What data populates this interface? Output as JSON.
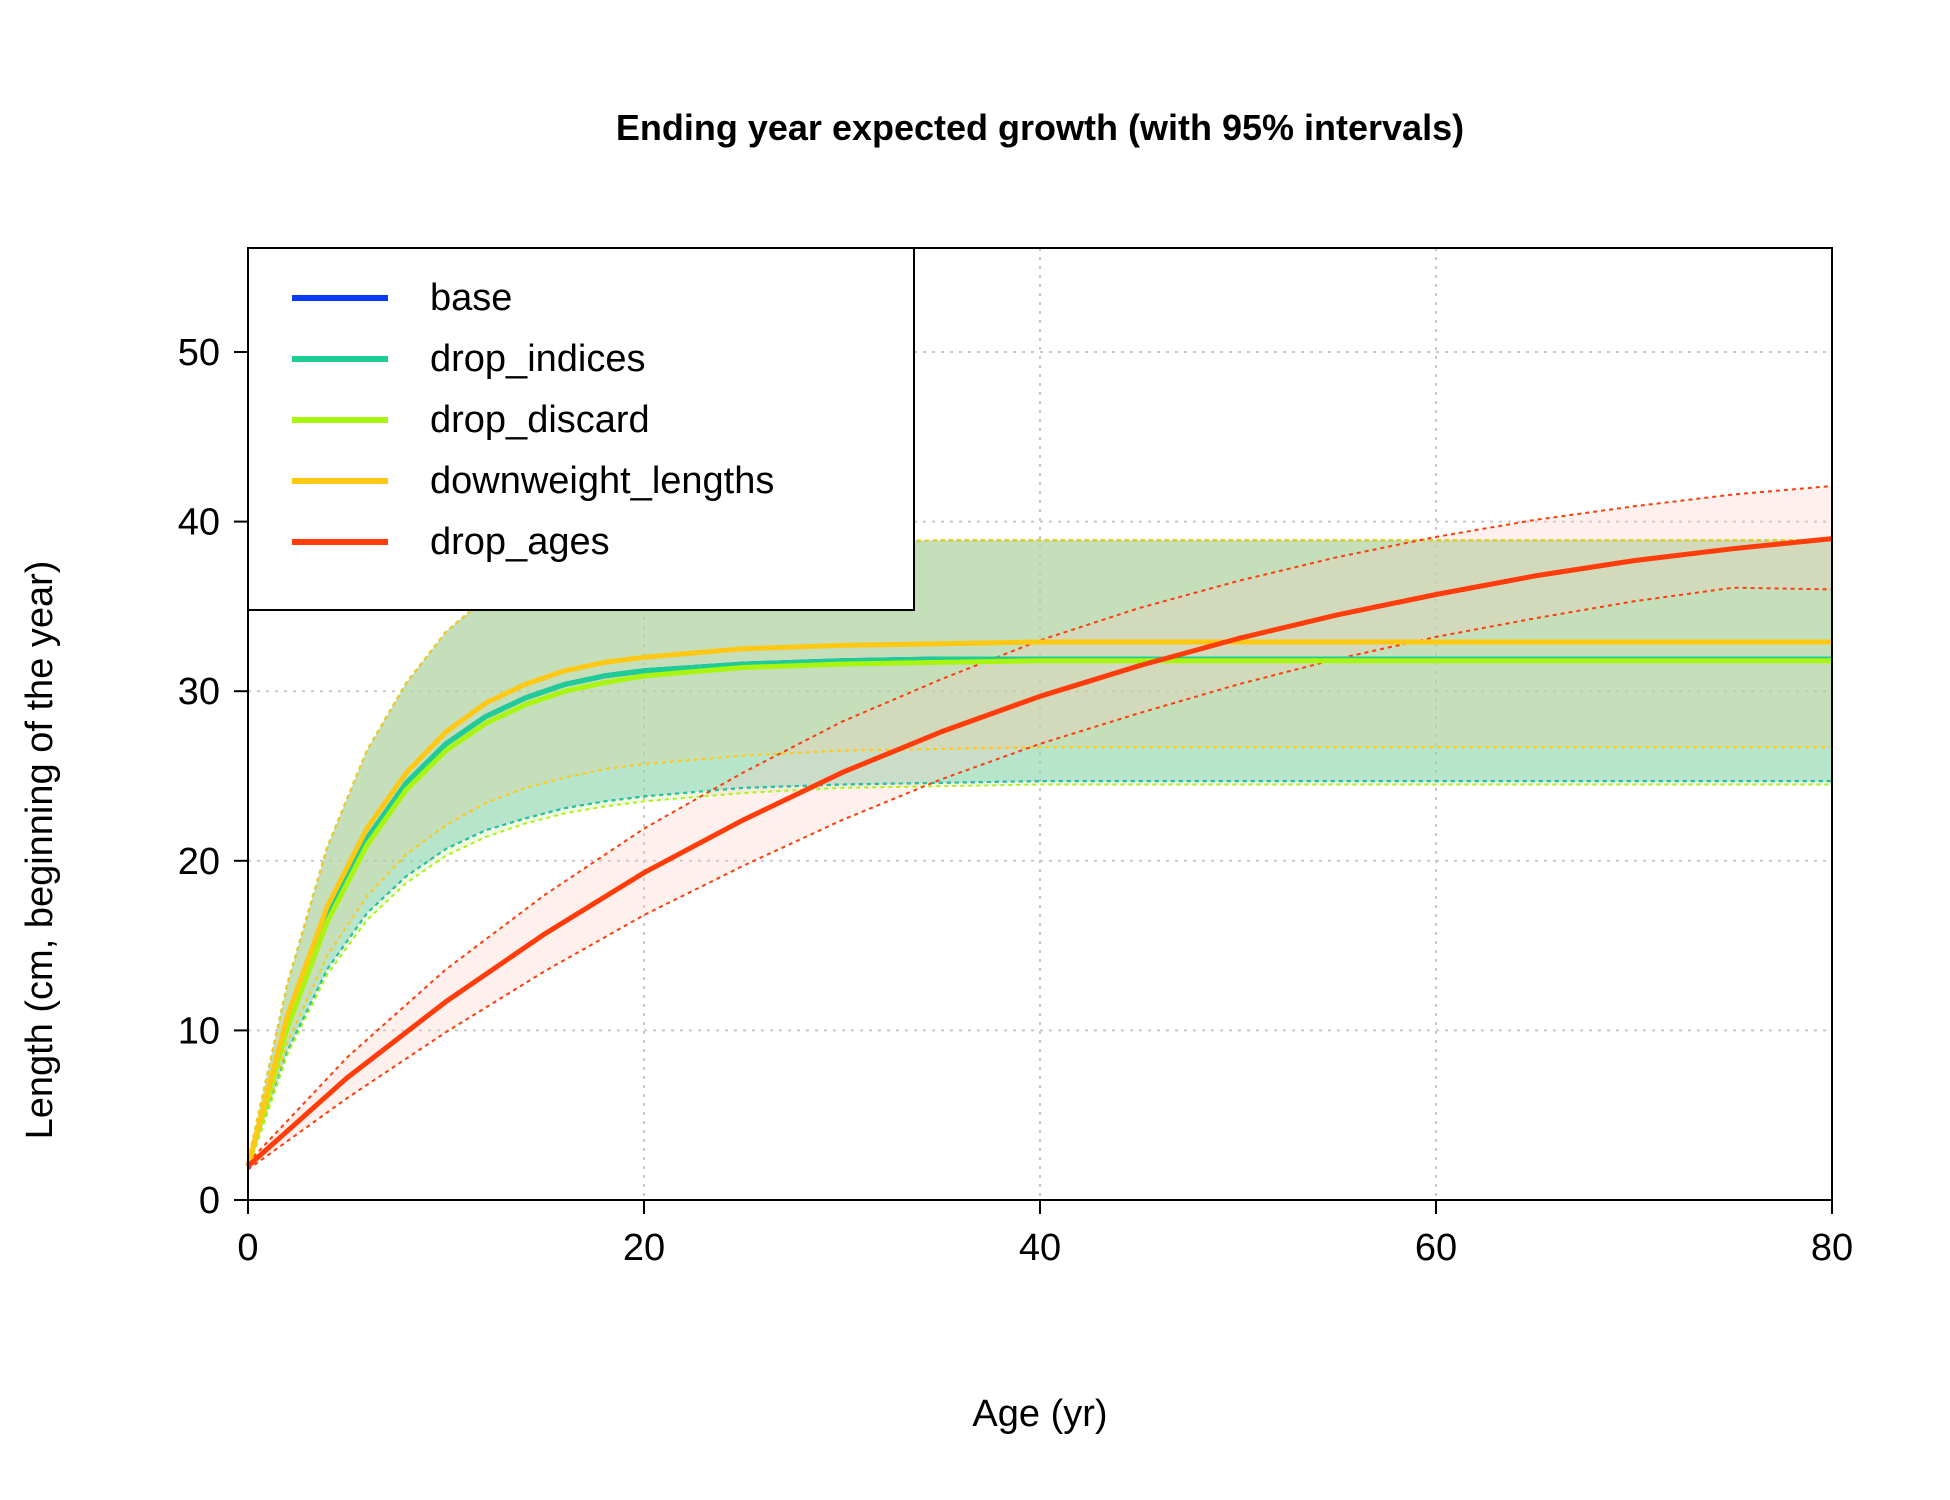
{
  "chart_data": {
    "type": "line",
    "title": "Ending year expected growth (with 95% intervals)",
    "xlabel": "Age (yr)",
    "ylabel": "Length (cm, beginning of the year)",
    "xlim": [
      0,
      80
    ],
    "ylim": [
      0,
      55
    ],
    "xticks": [
      0,
      20,
      40,
      60,
      80
    ],
    "yticks": [
      0,
      10,
      20,
      30,
      40,
      50
    ],
    "grid": true,
    "legend_position": "top-left",
    "series": [
      {
        "name": "base",
        "color": "#0a3cf5",
        "fill": "#5fc8c8",
        "x": [
          0,
          2,
          4,
          6,
          8,
          10,
          12,
          14,
          16,
          18,
          20,
          25,
          30,
          35,
          40,
          50,
          60,
          70,
          80
        ],
        "y": [
          2,
          10.5,
          16.8,
          21.3,
          24.6,
          26.9,
          28.5,
          29.6,
          30.4,
          30.9,
          31.2,
          31.6,
          31.8,
          31.9,
          31.9,
          31.9,
          31.9,
          31.9,
          31.9
        ],
        "lower": [
          1.8,
          8.8,
          13.6,
          16.9,
          19.1,
          20.7,
          21.8,
          22.5,
          23.1,
          23.5,
          23.8,
          24.3,
          24.5,
          24.6,
          24.7,
          24.7,
          24.7,
          24.7,
          24.7
        ],
        "upper": [
          2.3,
          12.8,
          20.8,
          26.5,
          30.5,
          33.5,
          35.5,
          36.8,
          37.6,
          38.1,
          38.4,
          38.7,
          38.8,
          38.9,
          38.9,
          38.9,
          38.9,
          38.9,
          38.9
        ]
      },
      {
        "name": "drop_indices",
        "color": "#1ecd96",
        "fill": "#5fc8c8",
        "x": [
          0,
          2,
          4,
          6,
          8,
          10,
          12,
          14,
          16,
          18,
          20,
          25,
          30,
          35,
          40,
          50,
          60,
          70,
          80
        ],
        "y": [
          2,
          10.5,
          16.8,
          21.3,
          24.6,
          26.9,
          28.5,
          29.6,
          30.4,
          30.9,
          31.2,
          31.6,
          31.8,
          31.9,
          31.9,
          31.9,
          31.9,
          31.9,
          31.9
        ],
        "lower": [
          1.8,
          8.8,
          13.6,
          16.9,
          19.1,
          20.7,
          21.8,
          22.5,
          23.1,
          23.5,
          23.8,
          24.3,
          24.5,
          24.6,
          24.7,
          24.7,
          24.7,
          24.7,
          24.7
        ],
        "upper": [
          2.3,
          12.8,
          20.8,
          26.5,
          30.5,
          33.5,
          35.5,
          36.8,
          37.6,
          38.1,
          38.4,
          38.7,
          38.8,
          38.9,
          38.9,
          38.9,
          38.9,
          38.9,
          38.9
        ]
      },
      {
        "name": "drop_discard",
        "color": "#aaf50f",
        "fill": "#c8e68c",
        "x": [
          0,
          2,
          4,
          6,
          8,
          10,
          12,
          14,
          16,
          18,
          20,
          25,
          30,
          35,
          40,
          50,
          60,
          70,
          80
        ],
        "y": [
          2,
          10.2,
          16.4,
          20.9,
          24.2,
          26.5,
          28.1,
          29.2,
          30.0,
          30.5,
          30.9,
          31.4,
          31.6,
          31.7,
          31.8,
          31.8,
          31.8,
          31.8,
          31.8
        ],
        "lower": [
          1.8,
          8.6,
          13.3,
          16.5,
          18.7,
          20.3,
          21.4,
          22.2,
          22.8,
          23.2,
          23.5,
          24.0,
          24.3,
          24.4,
          24.5,
          24.5,
          24.5,
          24.5,
          24.5
        ],
        "upper": [
          2.3,
          12.8,
          20.8,
          26.5,
          30.5,
          33.5,
          35.5,
          36.8,
          37.6,
          38.1,
          38.4,
          38.7,
          38.8,
          38.9,
          38.9,
          38.9,
          38.9,
          38.9,
          38.9
        ]
      },
      {
        "name": "downweight_lengths",
        "color": "#ffc814",
        "fill": "#e6d28c",
        "x": [
          0,
          2,
          4,
          6,
          8,
          10,
          12,
          14,
          16,
          18,
          20,
          25,
          30,
          35,
          40,
          50,
          60,
          70,
          80
        ],
        "y": [
          2,
          10.9,
          17.3,
          21.9,
          25.2,
          27.6,
          29.3,
          30.4,
          31.2,
          31.7,
          32.0,
          32.5,
          32.7,
          32.8,
          32.9,
          32.9,
          32.9,
          32.9,
          32.9
        ],
        "lower": [
          1.9,
          9.3,
          14.4,
          17.9,
          20.4,
          22.1,
          23.4,
          24.3,
          24.9,
          25.4,
          25.7,
          26.2,
          26.5,
          26.6,
          26.7,
          26.7,
          26.7,
          26.7,
          26.7
        ],
        "upper": [
          2.3,
          12.8,
          20.8,
          26.5,
          30.5,
          33.5,
          35.5,
          36.8,
          37.6,
          38.1,
          38.4,
          38.7,
          38.8,
          38.9,
          38.9,
          38.9,
          38.9,
          38.9,
          38.9
        ]
      },
      {
        "name": "drop_ages",
        "color": "#ff3c0a",
        "fill": "#fac8be",
        "x": [
          0,
          5,
          10,
          15,
          20,
          25,
          30,
          35,
          40,
          45,
          50,
          55,
          60,
          65,
          70,
          75,
          80
        ],
        "y": [
          2,
          7.2,
          11.7,
          15.7,
          19.3,
          22.4,
          25.2,
          27.6,
          29.7,
          31.5,
          33.1,
          34.5,
          35.7,
          36.8,
          37.7,
          38.4,
          39.0
        ],
        "lower": [
          1.8,
          6.0,
          9.9,
          13.5,
          16.8,
          19.7,
          22.4,
          24.8,
          26.9,
          28.7,
          30.4,
          31.9,
          33.2,
          34.3,
          35.3,
          36.1,
          36.0
        ],
        "upper": [
          2.2,
          8.4,
          13.6,
          18.0,
          21.9,
          25.2,
          28.2,
          30.7,
          33.0,
          34.9,
          36.5,
          37.9,
          39.1,
          40.1,
          40.9,
          41.6,
          42.1
        ]
      }
    ]
  }
}
